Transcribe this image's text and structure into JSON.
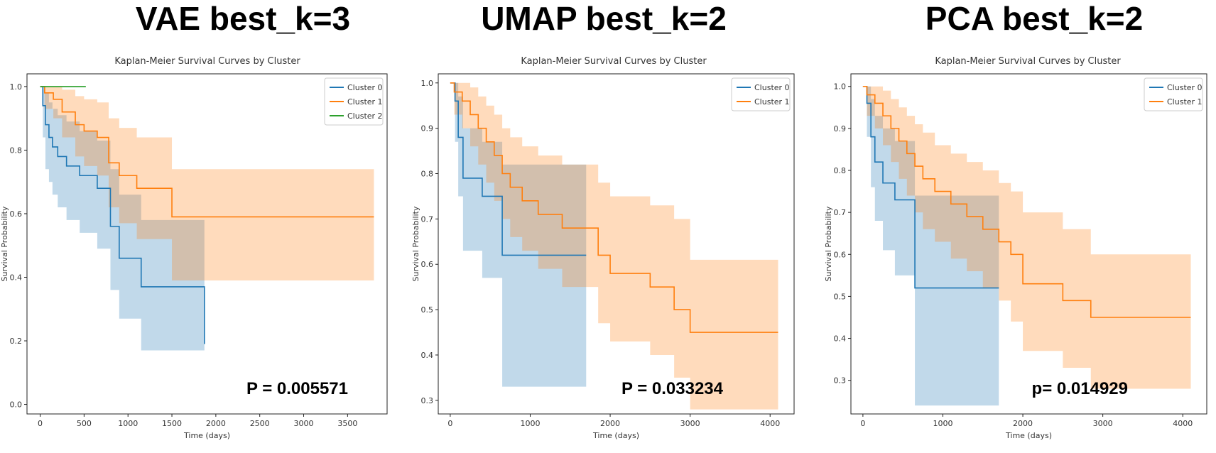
{
  "colors": {
    "cluster_0": "#1f77b4",
    "cluster_1": "#ff7f0e",
    "cluster_2": "#2ca02c"
  },
  "chart_data": [
    {
      "type": "line",
      "heading": "VAE best_k=3",
      "title": "Kaplan-Meier Survival Curves by Cluster",
      "xlabel": "Time (days)",
      "ylabel": "Survival Probability",
      "xlim": [
        -150,
        3950
      ],
      "ylim": [
        -0.03,
        1.04
      ],
      "xticks": [
        0,
        500,
        1000,
        1500,
        2000,
        2500,
        3000,
        3500
      ],
      "yticks": [
        0.0,
        0.2,
        0.4,
        0.6,
        0.8,
        1.0
      ],
      "xtick_labels": [
        "0",
        "500",
        "1000",
        "1500",
        "2000",
        "2500",
        "3000",
        "3500"
      ],
      "ytick_labels": [
        "0.0",
        "0.2",
        "0.4",
        "0.6",
        "0.8",
        "1.0"
      ],
      "pvalue_label": "P = 0.005571",
      "legend": [
        "Cluster 0",
        "Cluster 1",
        "Cluster 2"
      ],
      "series": [
        {
          "name": "Cluster 0",
          "x": [
            0,
            30,
            60,
            100,
            140,
            200,
            300,
            450,
            650,
            800,
            900,
            1150,
            1850,
            1870
          ],
          "y": [
            1.0,
            0.94,
            0.88,
            0.84,
            0.81,
            0.78,
            0.75,
            0.72,
            0.68,
            0.56,
            0.46,
            0.37,
            0.37,
            0.19
          ],
          "ci_upper": [
            1.0,
            1.0,
            0.98,
            0.95,
            0.93,
            0.91,
            0.89,
            0.86,
            0.83,
            0.74,
            0.66,
            0.58,
            0.58,
            0.5
          ],
          "ci_lower": [
            1.0,
            0.84,
            0.74,
            0.7,
            0.66,
            0.62,
            0.58,
            0.54,
            0.49,
            0.36,
            0.27,
            0.17,
            0.17,
            0.02
          ]
        },
        {
          "name": "Cluster 1",
          "x": [
            0,
            50,
            150,
            250,
            400,
            500,
            650,
            780,
            900,
            1100,
            1500,
            3800
          ],
          "y": [
            1.0,
            0.98,
            0.96,
            0.92,
            0.88,
            0.86,
            0.84,
            0.76,
            0.72,
            0.68,
            0.59,
            0.59
          ],
          "ci_upper": [
            1.0,
            1.0,
            1.0,
            0.99,
            0.97,
            0.96,
            0.95,
            0.9,
            0.87,
            0.84,
            0.74,
            0.74
          ],
          "ci_lower": [
            1.0,
            0.93,
            0.9,
            0.84,
            0.78,
            0.75,
            0.72,
            0.62,
            0.57,
            0.52,
            0.39,
            0.39
          ]
        },
        {
          "name": "Cluster 2",
          "x": [
            0,
            520
          ],
          "y": [
            1.0,
            1.0
          ],
          "ci_upper": [
            1.0,
            1.0
          ],
          "ci_lower": [
            1.0,
            1.0
          ]
        }
      ]
    },
    {
      "type": "line",
      "heading": "UMAP best_k=2",
      "title": "Kaplan-Meier Survival Curves by Cluster",
      "xlabel": "Time (days)",
      "ylabel": "Survival Probability",
      "xlim": [
        -150,
        4300
      ],
      "ylim": [
        0.27,
        1.02
      ],
      "xticks": [
        0,
        1000,
        2000,
        3000,
        4000
      ],
      "yticks": [
        0.3,
        0.4,
        0.5,
        0.6,
        0.7,
        0.8,
        0.9,
        1.0
      ],
      "xtick_labels": [
        "0",
        "1000",
        "2000",
        "3000",
        "4000"
      ],
      "ytick_labels": [
        "0.3",
        "0.4",
        "0.5",
        "0.6",
        "0.7",
        "0.8",
        "0.9",
        "1.0"
      ],
      "pvalue_label": "P = 0.033234",
      "legend": [
        "Cluster 0",
        "Cluster 1"
      ],
      "series": [
        {
          "name": "Cluster 0",
          "x": [
            0,
            60,
            100,
            160,
            400,
            650,
            1700
          ],
          "y": [
            1.0,
            0.96,
            0.88,
            0.79,
            0.75,
            0.62,
            0.62
          ],
          "ci_upper": [
            1.0,
            1.0,
            0.97,
            0.9,
            0.87,
            0.82,
            0.82
          ],
          "ci_lower": [
            1.0,
            0.87,
            0.75,
            0.63,
            0.57,
            0.33,
            0.33
          ]
        },
        {
          "name": "Cluster 1",
          "x": [
            0,
            50,
            150,
            250,
            350,
            450,
            550,
            650,
            750,
            900,
            1100,
            1400,
            1850,
            2000,
            2500,
            2800,
            3000,
            4100
          ],
          "y": [
            1.0,
            0.98,
            0.96,
            0.93,
            0.9,
            0.87,
            0.84,
            0.8,
            0.77,
            0.74,
            0.71,
            0.68,
            0.62,
            0.58,
            0.55,
            0.5,
            0.45,
            0.45
          ],
          "ci_upper": [
            1.0,
            1.0,
            1.0,
            0.99,
            0.97,
            0.95,
            0.93,
            0.9,
            0.88,
            0.86,
            0.84,
            0.82,
            0.78,
            0.75,
            0.73,
            0.7,
            0.61,
            0.61
          ],
          "ci_lower": [
            1.0,
            0.93,
            0.9,
            0.86,
            0.82,
            0.78,
            0.74,
            0.7,
            0.66,
            0.63,
            0.59,
            0.55,
            0.47,
            0.43,
            0.4,
            0.35,
            0.28,
            0.28
          ]
        }
      ]
    },
    {
      "type": "line",
      "heading": "PCA best_k=2",
      "title": "Kaplan-Meier Survival Curves by Cluster",
      "xlabel": "Time (days)",
      "ylabel": "Survival Probability",
      "xlim": [
        -150,
        4300
      ],
      "ylim": [
        0.22,
        1.03
      ],
      "xticks": [
        0,
        1000,
        2000,
        3000,
        4000
      ],
      "yticks": [
        0.3,
        0.4,
        0.5,
        0.6,
        0.7,
        0.8,
        0.9,
        1.0
      ],
      "xtick_labels": [
        "0",
        "1000",
        "2000",
        "3000",
        "4000"
      ],
      "ytick_labels": [
        "0.3",
        "0.4",
        "0.5",
        "0.6",
        "0.7",
        "0.8",
        "0.9",
        "1.0"
      ],
      "pvalue_label": "p= 0.014929",
      "legend": [
        "Cluster 0",
        "Cluster 1"
      ],
      "series": [
        {
          "name": "Cluster 0",
          "x": [
            0,
            50,
            100,
            150,
            250,
            400,
            650,
            1700
          ],
          "y": [
            1.0,
            0.96,
            0.88,
            0.82,
            0.77,
            0.73,
            0.52,
            0.52
          ],
          "ci_upper": [
            1.0,
            1.0,
            0.97,
            0.93,
            0.9,
            0.87,
            0.74,
            0.74
          ],
          "ci_lower": [
            1.0,
            0.88,
            0.76,
            0.68,
            0.61,
            0.55,
            0.24,
            0.24
          ]
        },
        {
          "name": "Cluster 1",
          "x": [
            0,
            50,
            150,
            250,
            350,
            450,
            550,
            650,
            750,
            900,
            1100,
            1300,
            1500,
            1700,
            1850,
            2000,
            2500,
            2850,
            4100
          ],
          "y": [
            1.0,
            0.98,
            0.96,
            0.93,
            0.9,
            0.87,
            0.84,
            0.81,
            0.78,
            0.75,
            0.72,
            0.69,
            0.66,
            0.63,
            0.6,
            0.53,
            0.49,
            0.45,
            0.45
          ],
          "ci_upper": [
            1.0,
            1.0,
            1.0,
            0.99,
            0.97,
            0.95,
            0.93,
            0.91,
            0.89,
            0.86,
            0.84,
            0.82,
            0.8,
            0.77,
            0.75,
            0.7,
            0.66,
            0.6,
            0.6
          ],
          "ci_lower": [
            1.0,
            0.93,
            0.9,
            0.86,
            0.82,
            0.78,
            0.74,
            0.7,
            0.66,
            0.63,
            0.59,
            0.56,
            0.52,
            0.49,
            0.44,
            0.37,
            0.33,
            0.28,
            0.28
          ]
        }
      ]
    }
  ]
}
